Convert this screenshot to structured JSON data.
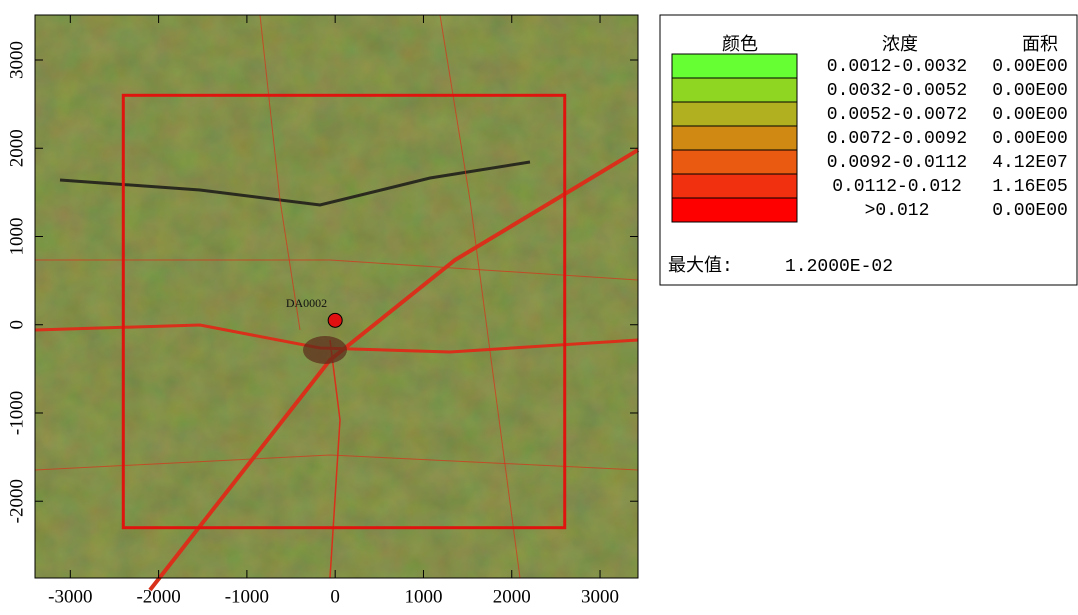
{
  "chart_data": {
    "type": "map",
    "xlim": [
      -3400,
      3430
    ],
    "ylim": [
      -2870,
      3510
    ],
    "xticks": [
      -3000,
      -2000,
      -1000,
      0,
      1000,
      2000,
      3000
    ],
    "yticks": [
      -2000,
      -1000,
      0,
      1000,
      2000,
      3000
    ],
    "region": {
      "x": [
        -2400,
        2600
      ],
      "y": [
        -2300,
        2600
      ],
      "color": "#e0140f"
    },
    "source": {
      "label": "DA0002",
      "x": 0,
      "y": 50,
      "color": "#e01010"
    },
    "legend": {
      "headers": [
        "颜色",
        "浓度",
        "面积"
      ],
      "rows": [
        {
          "color": "#66ff33",
          "range": "0.0012-0.0032",
          "area": "0.00E00"
        },
        {
          "color": "#8fd622",
          "range": "0.0032-0.0052",
          "area": "0.00E00"
        },
        {
          "color": "#b0b020",
          "range": "0.0052-0.0072",
          "area": "0.00E00"
        },
        {
          "color": "#d08a14",
          "range": "0.0072-0.0092",
          "area": "0.00E00"
        },
        {
          "color": "#ea5a10",
          "range": "0.0092-0.0112",
          "area": "4.12E07"
        },
        {
          "color": "#f0300e",
          "range": "0.0112-0.012",
          "area": "1.16E05"
        },
        {
          "color": "#ff0000",
          "range": ">0.012",
          "area": "0.00E00"
        }
      ],
      "max_label": "最大值:",
      "max_value": "1.2000E-02"
    }
  }
}
